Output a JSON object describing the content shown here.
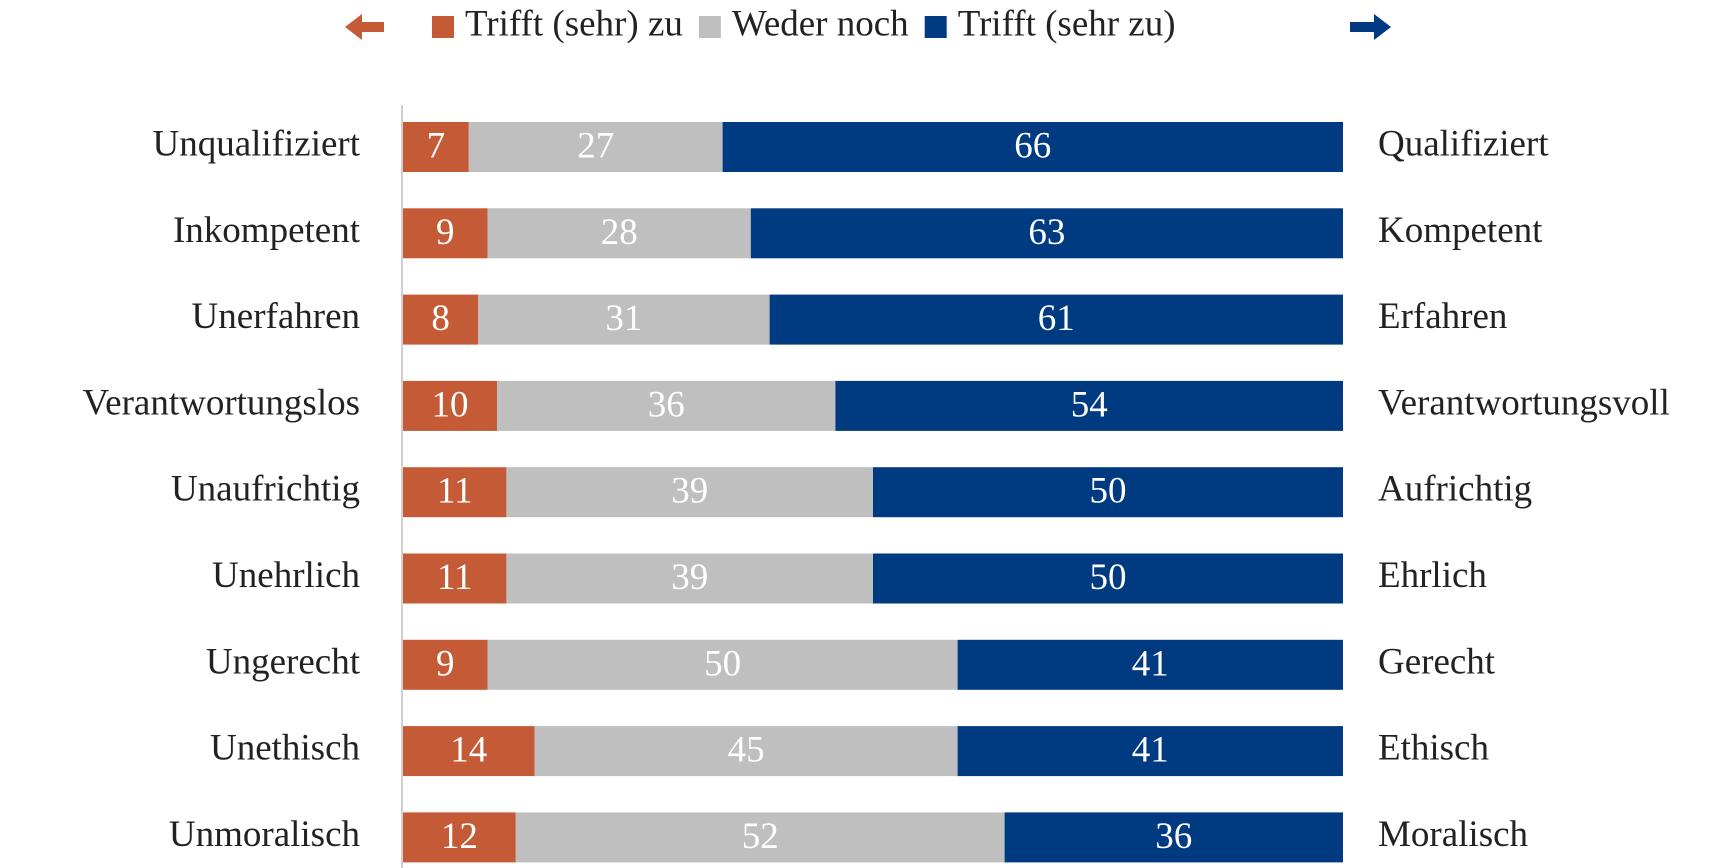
{
  "chart_data": {
    "type": "stacked-barh",
    "categories": [
      "Unqualifiziert",
      "Inkompetent",
      "Unerfahren",
      "Verantwortungslos",
      "Unaufrichtig",
      "Unehrlich",
      "Ungerecht",
      "Unethisch",
      "Unmoralisch"
    ],
    "categories_right": [
      "Qualifiziert",
      "Kompetent",
      "Erfahren",
      "Verantwortungsvoll",
      "Aufrichtig",
      "Ehrlich",
      "Gerecht",
      "Ethisch",
      "Moralisch"
    ],
    "series": [
      {
        "name": "Trifft (sehr) zu",
        "color": "#c55a36",
        "values": [
          7,
          9,
          8,
          10,
          11,
          11,
          9,
          14,
          12
        ]
      },
      {
        "name": "Weder noch",
        "color": "#bfbfbf",
        "values": [
          27,
          28,
          31,
          36,
          39,
          39,
          50,
          45,
          52
        ]
      },
      {
        "name": "Trifft (sehr zu)",
        "color": "#003a80",
        "values": [
          66,
          63,
          61,
          54,
          50,
          50,
          41,
          41,
          36
        ]
      }
    ],
    "xlim": [
      0,
      100
    ],
    "legend": "top"
  }
}
